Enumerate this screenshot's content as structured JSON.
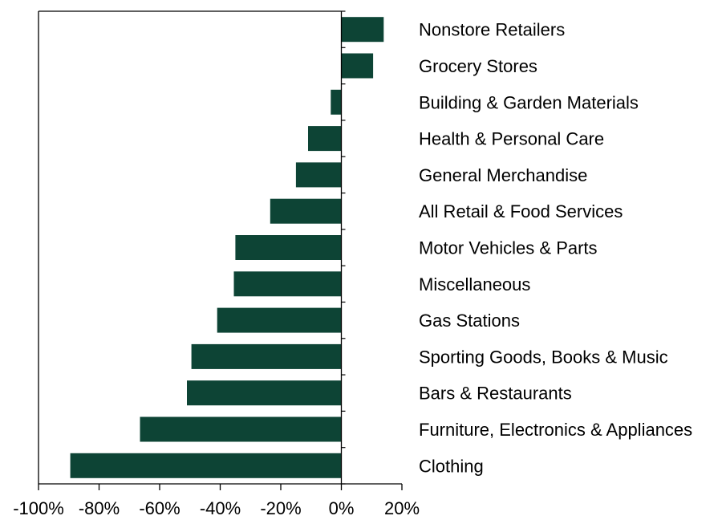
{
  "chart_data": {
    "type": "bar",
    "orientation": "horizontal",
    "categories": [
      "Nonstore Retailers",
      "Grocery Stores",
      "Building & Garden Materials",
      "Health & Personal Care",
      "General Merchandise",
      "All Retail & Food Services",
      "Motor Vehicles & Parts",
      "Miscellaneous",
      "Gas Stations",
      "Sporting Goods, Books & Music",
      "Bars & Restaurants",
      "Furniture, Electronics & Appliances",
      "Clothing"
    ],
    "values": [
      14,
      10.5,
      -3.5,
      -11,
      -15,
      -23.5,
      -35,
      -35.5,
      -41,
      -49.5,
      -51,
      -66.5,
      -89.5
    ],
    "title": "",
    "xlabel": "",
    "ylabel": "",
    "xlim": [
      -100,
      20
    ],
    "xticks": [
      -100,
      -80,
      -60,
      -40,
      -20,
      0,
      20
    ],
    "xtick_labels": [
      "-100%",
      "-80%",
      "-60%",
      "-40%",
      "-20%",
      "0%",
      "20%"
    ],
    "grid": false,
    "legend": "none",
    "bar_color": "#0d4435",
    "axis_color": "#000000"
  }
}
